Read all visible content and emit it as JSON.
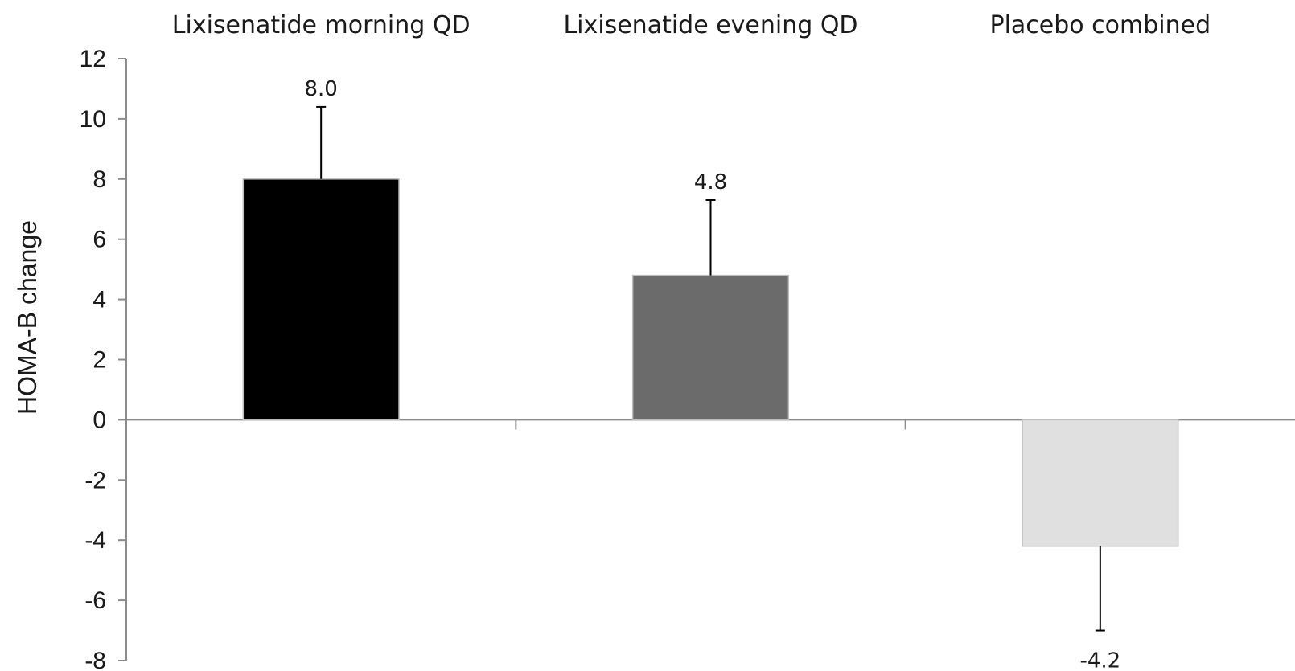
{
  "chart_data": {
    "type": "bar",
    "categories": [
      "Lixisenatide morning QD",
      "Lixisenatide evening QD",
      "Placebo combined"
    ],
    "values": [
      8.0,
      4.8,
      -4.2
    ],
    "value_labels": [
      "8.0",
      "4.8",
      "-4.2"
    ],
    "error": [
      2.4,
      2.5,
      2.8
    ],
    "colors": [
      "#000000",
      "#6b6b6b",
      "#e0e0e0"
    ],
    "ylabel": "HOMA-B change",
    "ylim": [
      -8,
      12
    ],
    "yticks": [
      12,
      10,
      8,
      6,
      4,
      2,
      0,
      -2,
      -4,
      -6,
      -8
    ],
    "category_label_position": "top",
    "grid": false,
    "legend": "none"
  }
}
